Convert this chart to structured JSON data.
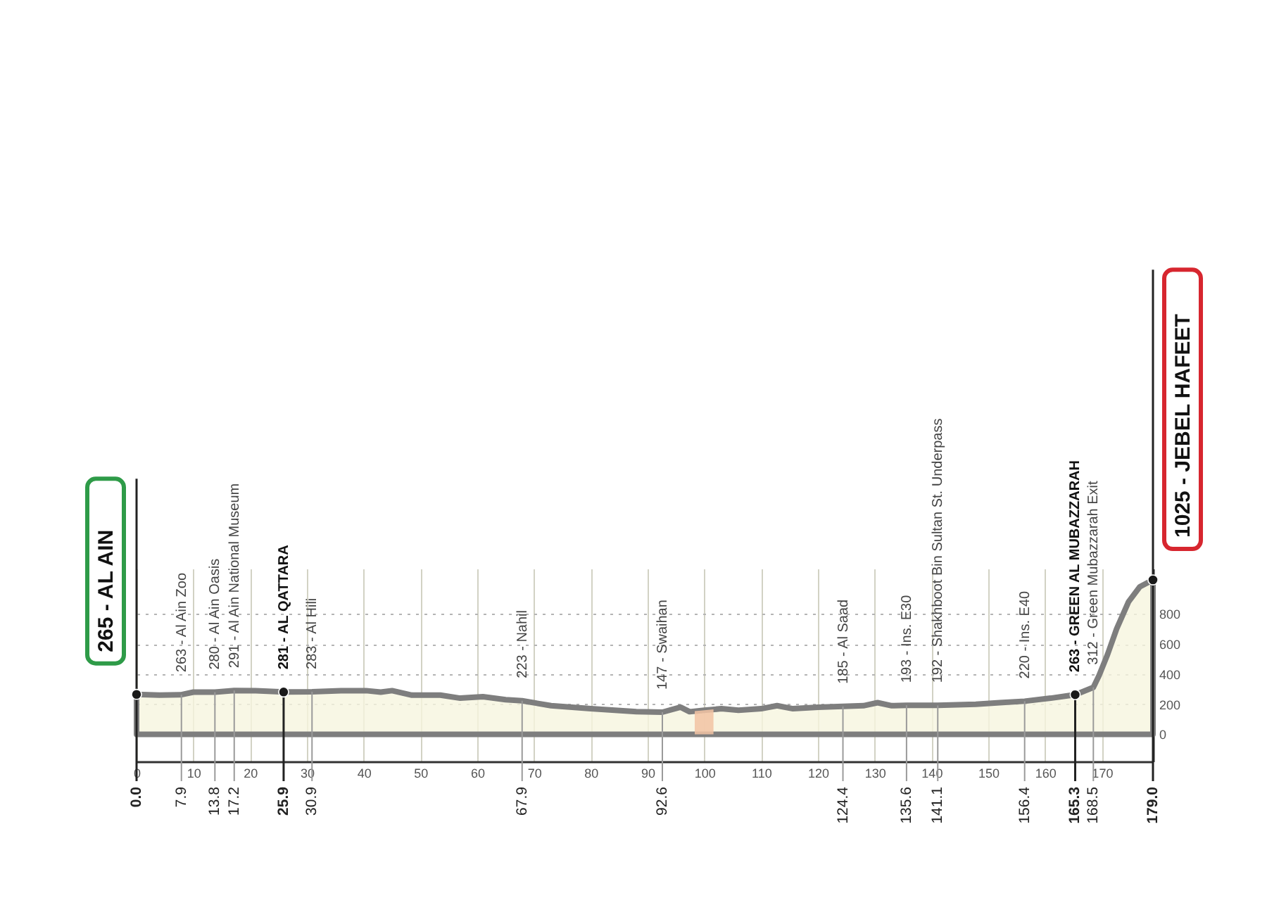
{
  "chart_data": {
    "type": "area",
    "xlim": [
      0,
      179
    ],
    "ylim": [
      -180,
      1100
    ],
    "xticks": [
      0,
      10,
      20,
      30,
      40,
      50,
      60,
      70,
      80,
      90,
      100,
      110,
      120,
      130,
      140,
      150,
      160,
      170
    ],
    "yticks": [
      0,
      200,
      400,
      600,
      800
    ],
    "grid": true,
    "series": [
      {
        "color": "#f6f5df",
        "x": [
          0,
          4,
          7.9,
          10,
          13.8,
          17.2,
          21,
          25.9,
          30.9,
          36,
          40.4,
          43,
          45,
          48.5,
          53.5,
          57,
          61,
          65,
          67.9,
          73,
          80,
          88,
          92.6,
          95.8,
          97.4,
          100,
          103,
          106,
          110,
          112.8,
          115.6,
          120,
          124.4,
          128,
          130.5,
          133,
          135.6,
          141.1,
          147.8,
          152,
          156.4,
          161,
          165.3,
          168.5,
          169.5,
          171,
          172.6,
          174.7,
          176.7,
          179
        ],
        "values": [
          265,
          260,
          263,
          280,
          280,
          291,
          290,
          281,
          283,
          290,
          290,
          280,
          290,
          260,
          260,
          240,
          250,
          230,
          223,
          190,
          170,
          150,
          147,
          180,
          150,
          160,
          170,
          160,
          170,
          190,
          170,
          180,
          185,
          190,
          210,
          190,
          193,
          192,
          200,
          210,
          220,
          240,
          263,
          312,
          390,
          530,
          700,
          880,
          980,
          1025
        ]
      },
      {
        "type": "scatter",
        "color": "#1a1a1a",
        "marker": "circle",
        "x": [
          0,
          25.9,
          165.3,
          179
        ],
        "values": [
          265,
          281,
          263,
          1025
        ]
      }
    ],
    "bands": [
      {
        "axis": "x",
        "from": 98.3,
        "to": 101.6,
        "color": "#f2c3a3"
      }
    ],
    "ref_lines": [
      {
        "axis": "x",
        "value": 0.0,
        "label": "0.0",
        "color": "#222222"
      },
      {
        "axis": "x",
        "value": 7.9,
        "label": "7.9",
        "color": "#9a9a9a"
      },
      {
        "axis": "x",
        "value": 13.8,
        "label": "13.8",
        "color": "#9a9a9a"
      },
      {
        "axis": "x",
        "value": 17.2,
        "label": "17.2",
        "color": "#9a9a9a"
      },
      {
        "axis": "x",
        "value": 25.9,
        "label": "25.9",
        "color": "#222222"
      },
      {
        "axis": "x",
        "value": 30.9,
        "label": "30.9",
        "color": "#9a9a9a"
      },
      {
        "axis": "x",
        "value": 67.9,
        "label": "67.9",
        "color": "#9a9a9a"
      },
      {
        "axis": "x",
        "value": 92.6,
        "label": "92.6",
        "color": "#9a9a9a"
      },
      {
        "axis": "x",
        "value": 124.4,
        "label": "124.4",
        "color": "#9a9a9a"
      },
      {
        "axis": "x",
        "value": 135.6,
        "label": "135.6",
        "color": "#9a9a9a"
      },
      {
        "axis": "x",
        "value": 141.1,
        "label": "141.1",
        "color": "#9a9a9a"
      },
      {
        "axis": "x",
        "value": 156.4,
        "label": "156.4",
        "color": "#9a9a9a"
      },
      {
        "axis": "x",
        "value": 165.3,
        "label": "165.3",
        "color": "#222222"
      },
      {
        "axis": "x",
        "value": 168.5,
        "label": "168.5",
        "color": "#9a9a9a"
      },
      {
        "axis": "x",
        "value": 179.0,
        "label": "179.0",
        "color": "#222222"
      }
    ],
    "annotations": [
      {
        "text": "265 - AL AIN",
        "x": 0,
        "y": 265
      },
      {
        "text": "263 - Al Ain Zoo",
        "x": 7.9,
        "y": 263
      },
      {
        "text": "280 - Al Ain Oasis",
        "x": 13.8,
        "y": 280
      },
      {
        "text": "291 - Al Ain National Museum",
        "x": 17.2,
        "y": 291
      },
      {
        "text": "281 - AL QATTARA",
        "x": 25.9,
        "y": 281
      },
      {
        "text": "283 - Al Hili",
        "x": 30.9,
        "y": 283
      },
      {
        "text": "223 - Nahil",
        "x": 67.9,
        "y": 223
      },
      {
        "text": "147 - Swaihan",
        "x": 92.6,
        "y": 147
      },
      {
        "text": "185 - Al Saad",
        "x": 124.4,
        "y": 185
      },
      {
        "text": "193 - Ins. E30",
        "x": 135.6,
        "y": 193
      },
      {
        "text": "192 - Shakhboot Bin Sultan St. Underpass",
        "x": 141.1,
        "y": 192
      },
      {
        "text": "220 - Ins. E40",
        "x": 156.4,
        "y": 220
      },
      {
        "text": "263 - GREEN AL MUBAZZARAH",
        "x": 165.3,
        "y": 263
      },
      {
        "text": "312 - Green Mubazzarah Exit",
        "x": 168.5,
        "y": 312
      },
      {
        "text": "1025 - JEBEL HAFEET",
        "x": 179,
        "y": 1025
      }
    ]
  }
}
